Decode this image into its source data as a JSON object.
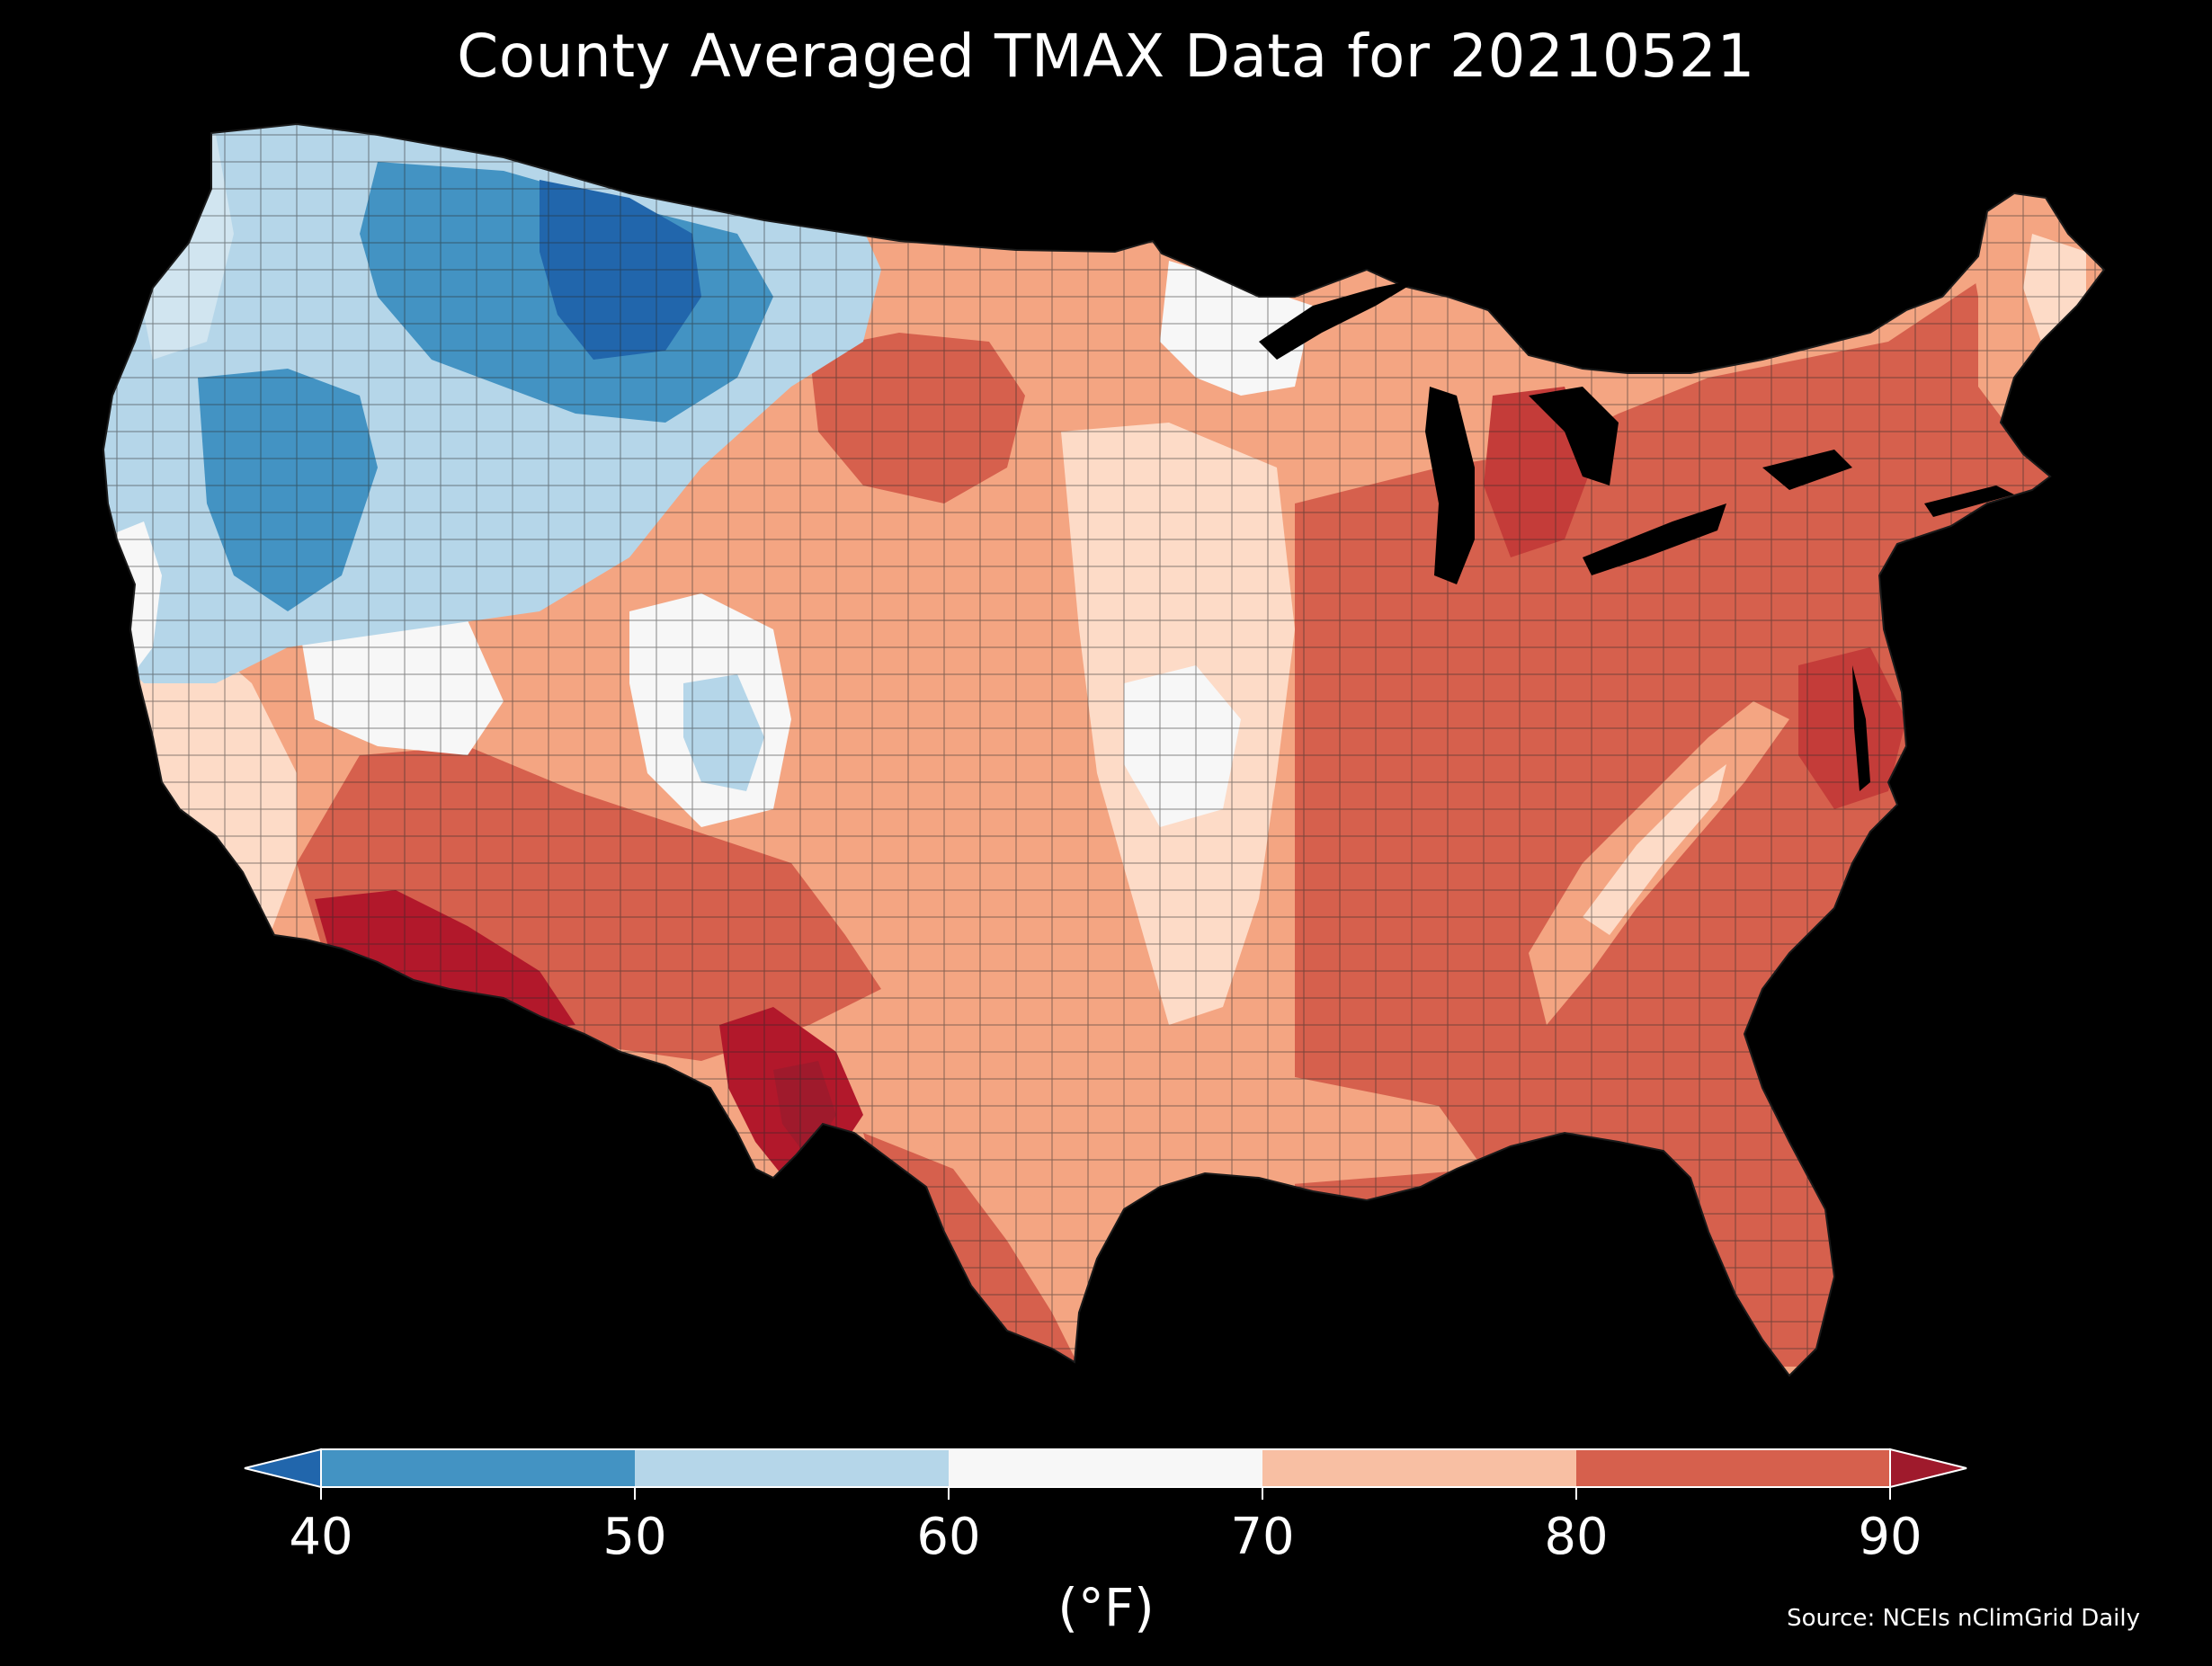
{
  "title": "County Averaged TMAX Data for 20210521",
  "colorbar": {
    "ticks": [
      "40",
      "50",
      "60",
      "70",
      "80",
      "90"
    ],
    "units": "(°F)",
    "bins": [
      {
        "range": "<40",
        "color": "#2166ac"
      },
      {
        "range": "40-50",
        "color": "#4393c3"
      },
      {
        "range": "50-60",
        "color": "#b5d6e9"
      },
      {
        "range": "60-70",
        "color": "#f7f7f7"
      },
      {
        "range": "70-80",
        "color": "#f8bfa3"
      },
      {
        "range": "80-90",
        "color": "#d6604d"
      },
      {
        "range": ">90",
        "color": "#9f1a2c"
      }
    ]
  },
  "source": "Source: NCEIs nClimGrid Daily",
  "colors": {
    "background": "#000000",
    "text": "#ffffff",
    "county_border": "#2a2a2a"
  }
}
